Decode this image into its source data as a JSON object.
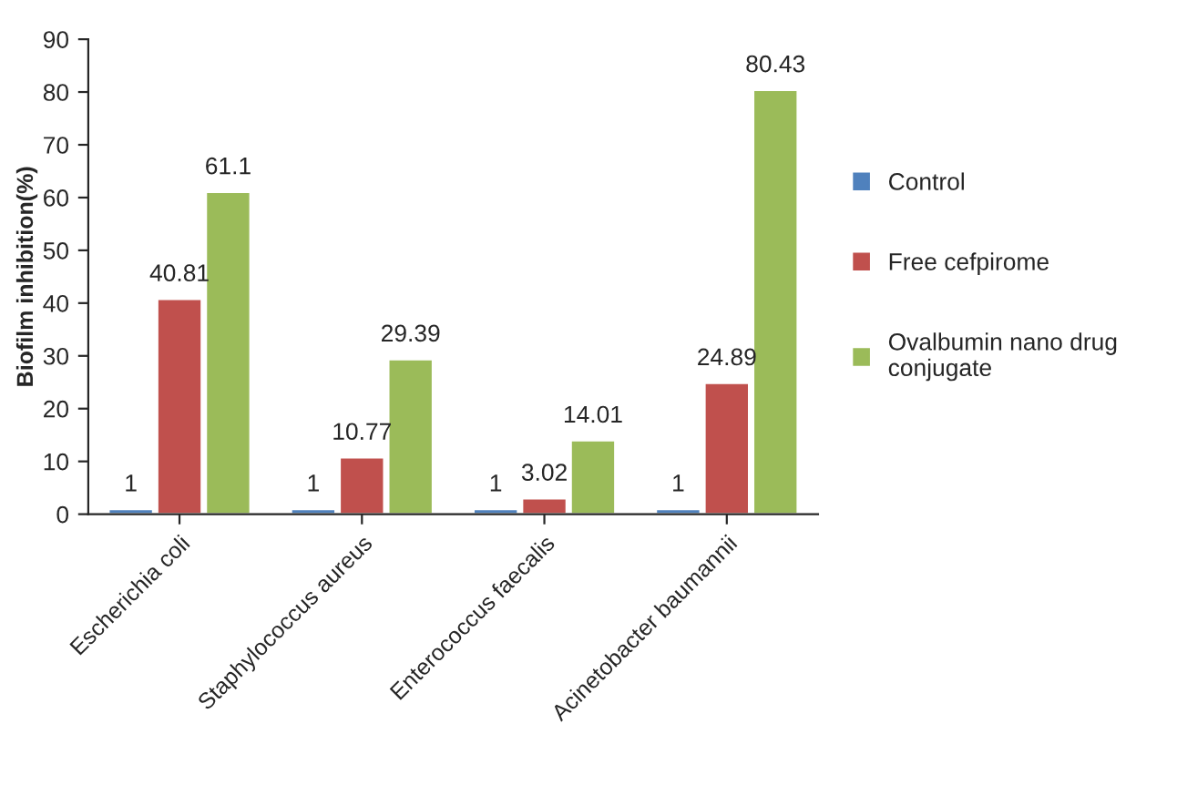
{
  "chart_data": {
    "type": "bar",
    "ylabel": "Biofilm inhibition(%)",
    "categories": [
      "Escherichia coli",
      "Staphylococcus aureus",
      "Enterococcus faecalis",
      "Acinetobacter baumannii"
    ],
    "series": [
      {
        "name": "Control",
        "color": "#4f81bd",
        "values": [
          1,
          1,
          1,
          1
        ]
      },
      {
        "name": "Free cefpirome",
        "color": "#c0504d",
        "values": [
          40.81,
          10.77,
          3.02,
          24.89
        ]
      },
      {
        "name": "Ovalbumin nano drug conjugate",
        "color": "#9bbb59",
        "values": [
          61.1,
          29.39,
          14.01,
          80.43
        ]
      }
    ],
    "ylim": [
      0,
      90
    ],
    "yticks": [
      0,
      10,
      20,
      30,
      40,
      50,
      60,
      70,
      80,
      90
    ],
    "data_labels": true,
    "legend": "right",
    "grid": false
  }
}
